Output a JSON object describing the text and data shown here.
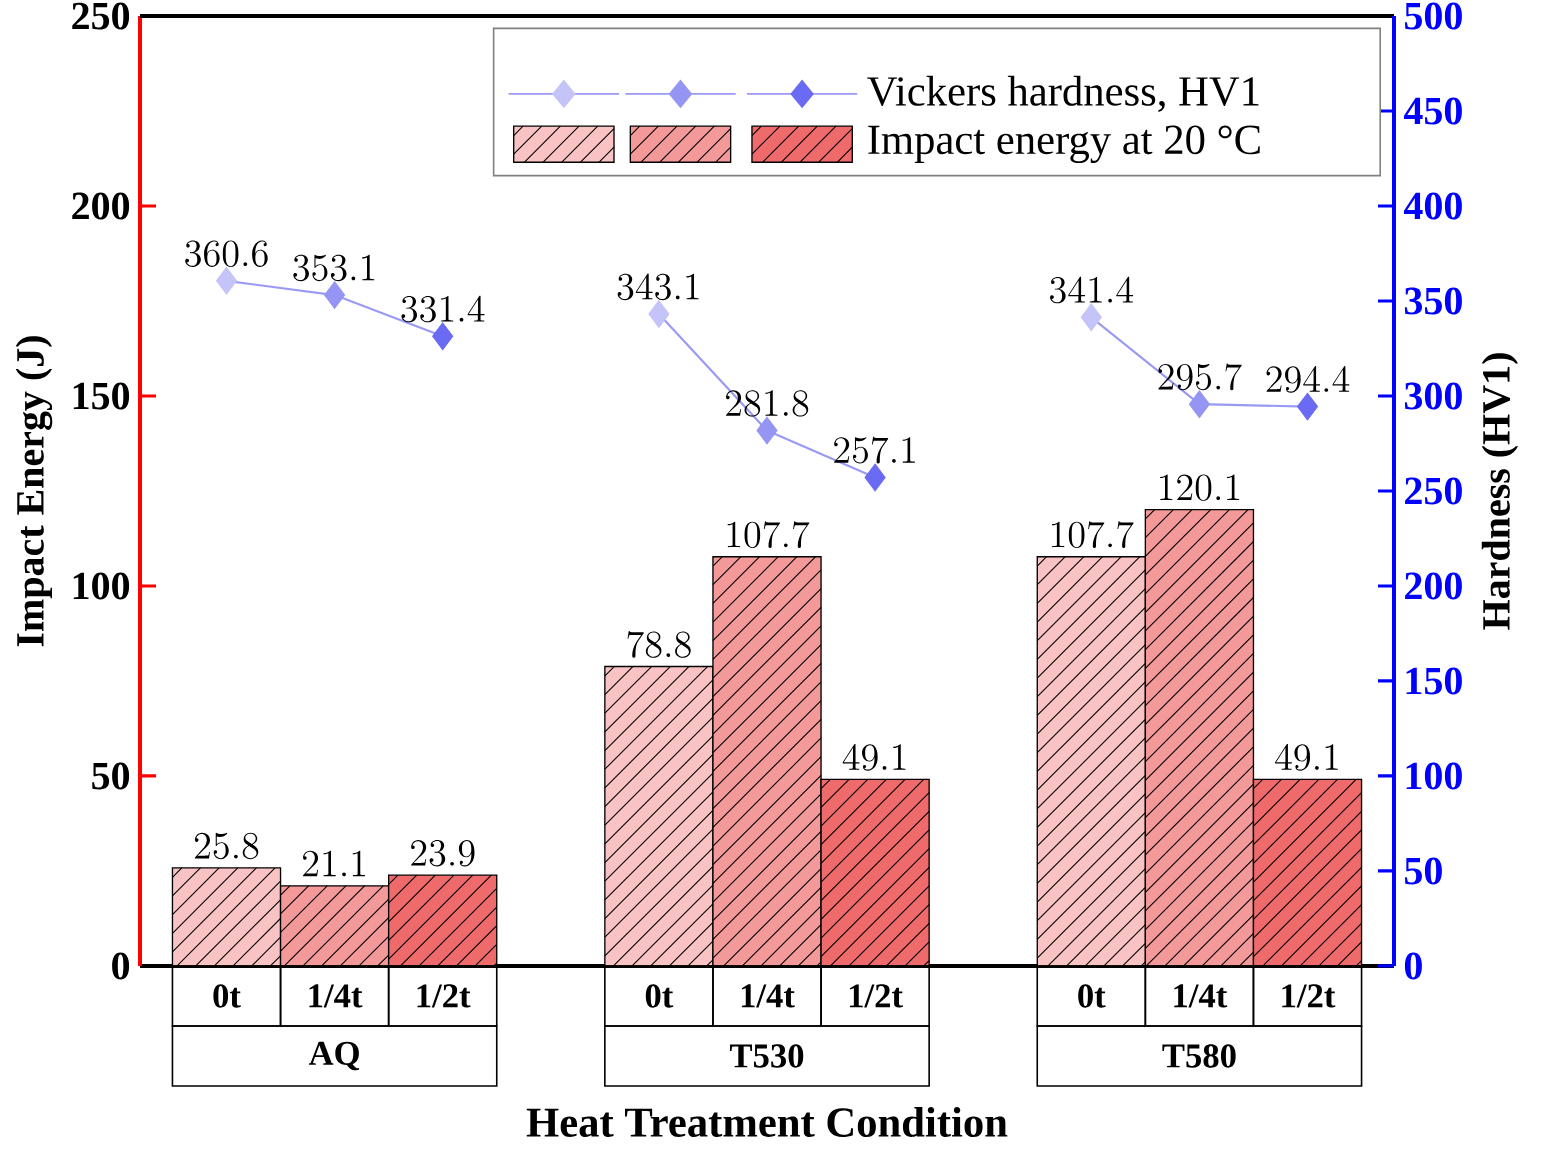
{
  "chart_data": {
    "type": "bar",
    "xlabel": "Heat Treatment Condition",
    "ylabel": "Impact Energy (J)",
    "y2label": "Hardness (HV1)",
    "categories": [
      "0t",
      "1/4t",
      "1/2t",
      null,
      "0t",
      "1/4t",
      "1/2t",
      null,
      "0t",
      "1/4t",
      "1/2t"
    ],
    "annotations": [
      "AQ",
      "T530",
      "T580"
    ],
    "series": [
      {
        "name": "Vickers hardness, HV1",
        "type": "line",
        "axis": "y2",
        "marker": "diamond",
        "color": "#9a9af5",
        "colors": [
          "#c4c4f8",
          "#9595f4",
          "#6a6af2",
          null,
          "#c4c4f8",
          "#9595f4",
          "#6a6af2",
          null,
          "#c4c4f8",
          "#9595f4",
          "#6a6af2"
        ],
        "values": [
          360.6,
          353.1,
          331.4,
          null,
          343.1,
          281.8,
          257.1,
          null,
          341.4,
          295.7,
          294.4
        ]
      },
      {
        "name": "Impact energy at 20 °C",
        "colors": [
          "#f9c3c3",
          "#f49999",
          "#ef6b6b",
          null,
          "#f9c3c3",
          "#f49999",
          "#ef6b6b",
          null,
          "#f9c3c3",
          "#f49999",
          "#ef6b6b"
        ],
        "values": [
          25.8,
          21.1,
          23.9,
          null,
          78.8,
          107.7,
          49.1,
          null,
          107.7,
          120.1,
          49.1
        ]
      }
    ],
    "ylim": [
      0,
      250
    ],
    "yticks": [
      0,
      50,
      100,
      150,
      200,
      250
    ],
    "y2lim": [
      0,
      500
    ],
    "y2ticks": [
      0,
      50,
      100,
      150,
      200,
      250,
      300,
      350,
      400,
      450,
      500
    ],
    "data_labels": true,
    "grid": false,
    "legend": "top right"
  }
}
